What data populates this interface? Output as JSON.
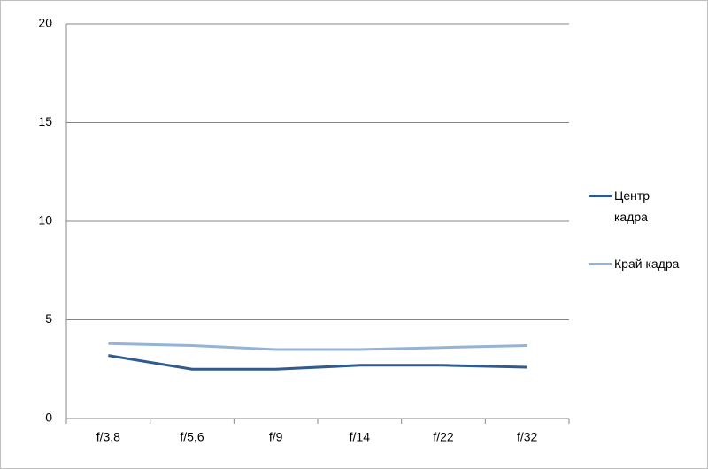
{
  "chart_data": {
    "type": "line",
    "categories": [
      "f/3,8",
      "f/5,6",
      "f/9",
      "f/14",
      "f/22",
      "f/32"
    ],
    "series": [
      {
        "name": "Центр кадра",
        "color": "#2f5b8e",
        "values": [
          3.2,
          2.5,
          2.5,
          2.7,
          2.7,
          2.6
        ]
      },
      {
        "name": "Край кадра",
        "color": "#95b3d7",
        "values": [
          3.8,
          3.7,
          3.5,
          3.5,
          3.6,
          3.7
        ]
      }
    ],
    "ylim": [
      0,
      20
    ],
    "yticks": [
      0,
      5,
      10,
      15,
      20
    ],
    "grid": true,
    "legend": "right"
  }
}
